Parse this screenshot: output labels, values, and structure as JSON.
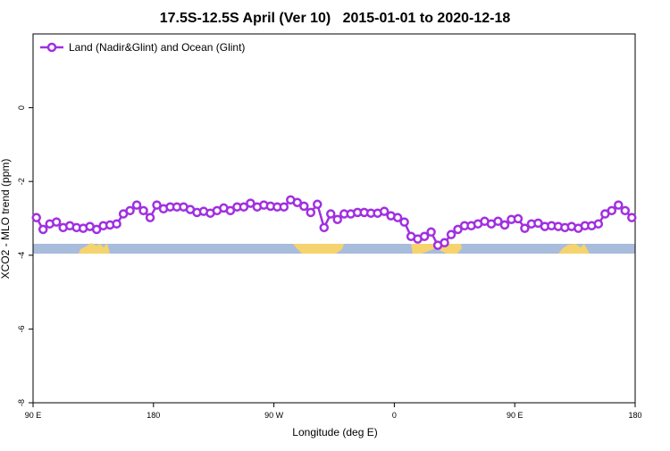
{
  "chart_data": {
    "type": "line",
    "title": "17.5S-12.5S April (Ver 10)   2015-01-01 to 2020-12-18",
    "x_label": "Longitude (deg E)",
    "y_label": "XCO2 - MLO trend (ppm)",
    "x": [
      92.5,
      97.5,
      102.5,
      107.5,
      112.5,
      117.5,
      122.5,
      127.5,
      132.5,
      137.5,
      142.5,
      147.5,
      152.5,
      157.5,
      162.5,
      167.5,
      172.5,
      177.5,
      182.5,
      187.5,
      192.5,
      197.5,
      202.5,
      207.5,
      212.5,
      217.5,
      222.5,
      227.5,
      232.5,
      237.5,
      242.5,
      247.5,
      252.5,
      257.5,
      262.5,
      267.5,
      272.5,
      277.5,
      282.5,
      287.5,
      292.5,
      297.5,
      302.5,
      307.5,
      312.5,
      317.5,
      322.5,
      327.5,
      332.5,
      337.5,
      342.5,
      347.5,
      352.5,
      357.5,
      362.5,
      367.5,
      372.5,
      377.5,
      382.5,
      387.5,
      392.5,
      397.5,
      402.5,
      407.5,
      412.5,
      417.5,
      422.5,
      427.5,
      432.5,
      437.5,
      442.5,
      447.5,
      452.5,
      457.5,
      462.5,
      467.5,
      472.5,
      477.5,
      482.5,
      487.5,
      492.5,
      497.5,
      502.5,
      507.5,
      512.5,
      517.5,
      522.5,
      527.5,
      532.5,
      537.5
    ],
    "series": [
      {
        "name": "Land (Nadir&Glint) and Ocean (Glint)",
        "color": "#a030e0",
        "values": [
          -2.98,
          -3.3,
          -3.15,
          -3.1,
          -3.25,
          -3.2,
          -3.25,
          -3.27,
          -3.22,
          -3.3,
          -3.2,
          -3.18,
          -3.15,
          -2.88,
          -2.79,
          -2.64,
          -2.79,
          -2.98,
          -2.64,
          -2.74,
          -2.69,
          -2.69,
          -2.69,
          -2.76,
          -2.84,
          -2.81,
          -2.86,
          -2.79,
          -2.72,
          -2.79,
          -2.69,
          -2.69,
          -2.59,
          -2.69,
          -2.64,
          -2.67,
          -2.69,
          -2.69,
          -2.5,
          -2.57,
          -2.67,
          -2.84,
          -2.62,
          -3.25,
          -2.88,
          -3.03,
          -2.88,
          -2.88,
          -2.84,
          -2.84,
          -2.86,
          -2.86,
          -2.81,
          -2.93,
          -2.98,
          -3.1,
          -3.49,
          -3.56,
          -3.49,
          -3.37,
          -3.73,
          -3.66,
          -3.44,
          -3.3,
          -3.2,
          -3.2,
          -3.15,
          -3.08,
          -3.15,
          -3.08,
          -3.18,
          -3.03,
          -3.01,
          -3.27,
          -3.15,
          -3.13,
          -3.22,
          -3.2,
          -3.22,
          -3.25,
          -3.22,
          -3.27,
          -3.2,
          -3.2,
          -3.15,
          -2.88,
          -2.79,
          -2.64,
          -2.79,
          -2.98
        ]
      }
    ],
    "xlim": [
      90,
      540
    ],
    "xticks": [
      {
        "value": 90,
        "label": "90 E"
      },
      180,
      {
        "value": 270,
        "label": "90 W"
      },
      {
        "value": 360,
        "label": "0"
      },
      {
        "value": 450,
        "label": "90 E"
      },
      {
        "value": 540,
        "label": "180"
      }
    ],
    "ylim": [
      -8,
      2
    ],
    "yticks": [
      0,
      -2,
      -4,
      -6,
      -8
    ],
    "legend": "top-left"
  }
}
